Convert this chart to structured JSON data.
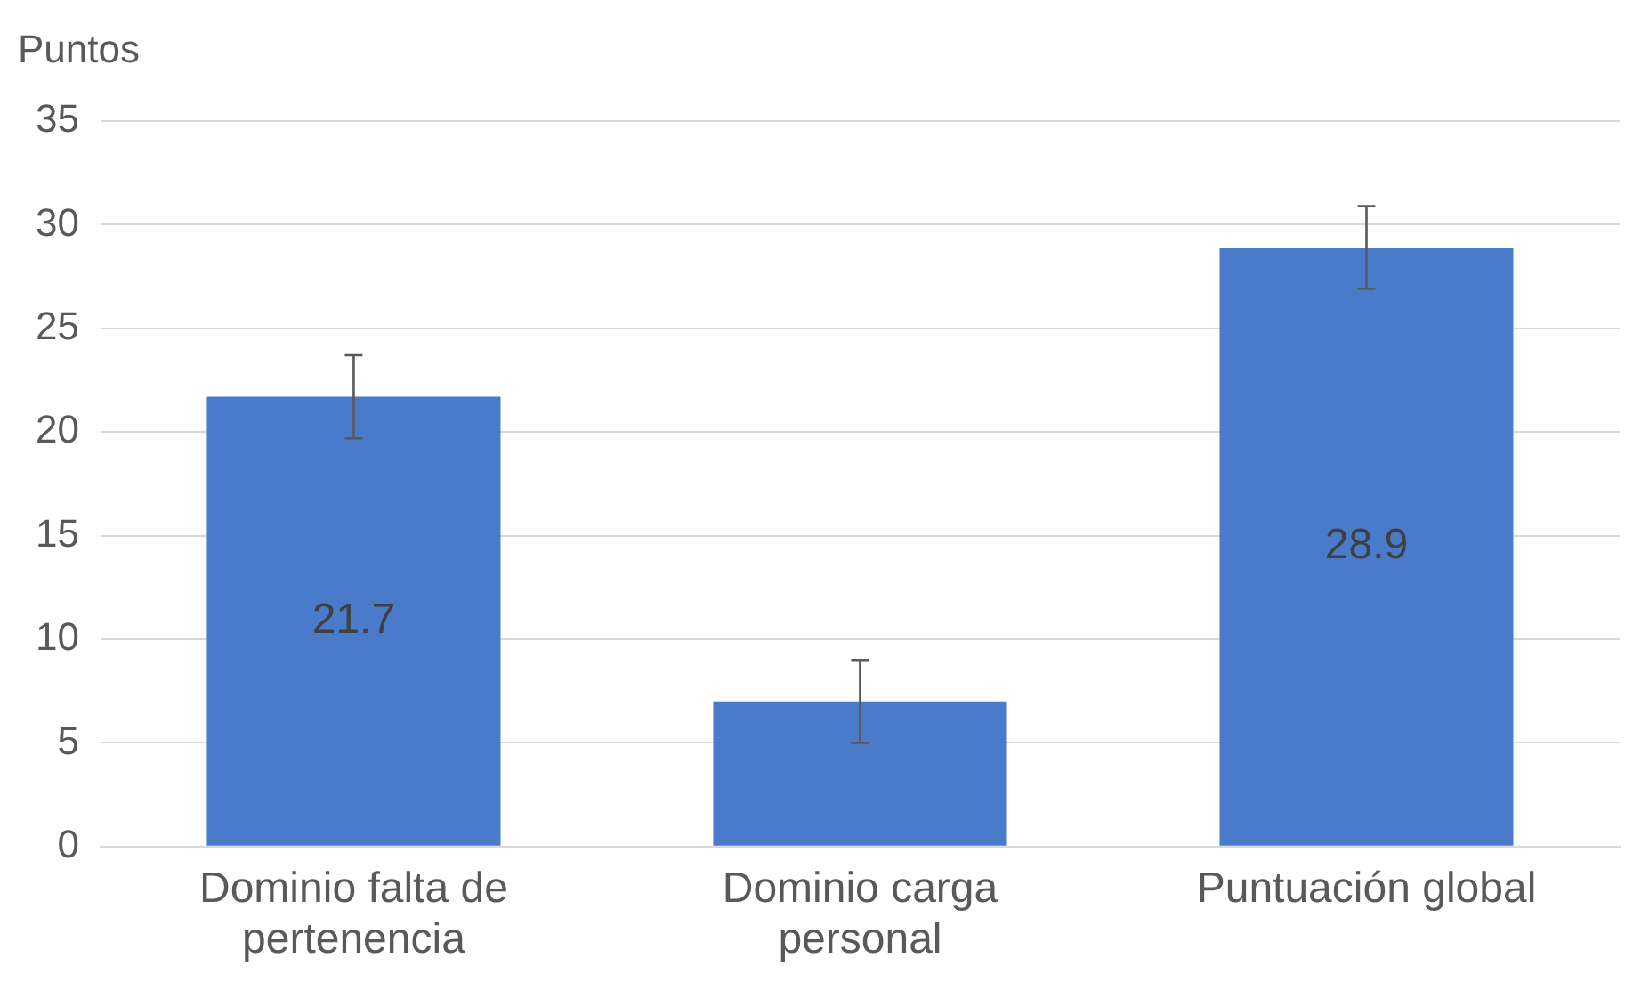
{
  "chart_data": {
    "type": "bar",
    "ylabel": "Puntos",
    "categories": [
      "Dominio falta de pertenencia",
      "Dominio carga personal",
      "Puntuación global"
    ],
    "values": [
      21.7,
      7.0,
      28.9
    ],
    "errors": [
      2,
      2,
      2
    ],
    "value_labels": [
      "21.7",
      null,
      "28.9"
    ],
    "color": "#4a7bcb",
    "ylim": [
      0,
      35
    ],
    "yticks": [
      0,
      5,
      10,
      15,
      20,
      25,
      30,
      35
    ],
    "grid": "y",
    "legend": false
  }
}
